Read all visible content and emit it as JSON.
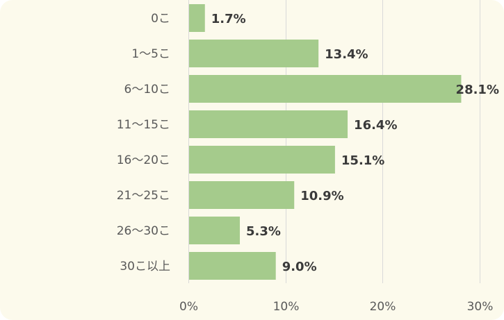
{
  "chart_data": {
    "type": "bar",
    "orientation": "horizontal",
    "categories": [
      "0こ",
      "1〜5こ",
      "6〜10こ",
      "11〜15こ",
      "16〜20こ",
      "21〜25こ",
      "26〜30こ",
      "30こ以上"
    ],
    "values": [
      1.7,
      13.4,
      28.1,
      16.4,
      15.1,
      10.9,
      5.3,
      9.0
    ],
    "value_labels": [
      "1.7%",
      "13.4%",
      "28.1%",
      "16.4%",
      "15.1%",
      "10.9%",
      "5.3%",
      "9.0%"
    ],
    "xlim": [
      0,
      30
    ],
    "xticks": [
      0,
      10,
      20,
      30
    ],
    "xtick_labels": [
      "0%",
      "10%",
      "20%",
      "30%"
    ],
    "title": "",
    "xlabel": "",
    "ylabel": "",
    "grid": true,
    "legend": "none"
  },
  "colors": {
    "bar": "#a5cb8c",
    "background": "#fcfaec",
    "grid": "#d9d9d9"
  }
}
